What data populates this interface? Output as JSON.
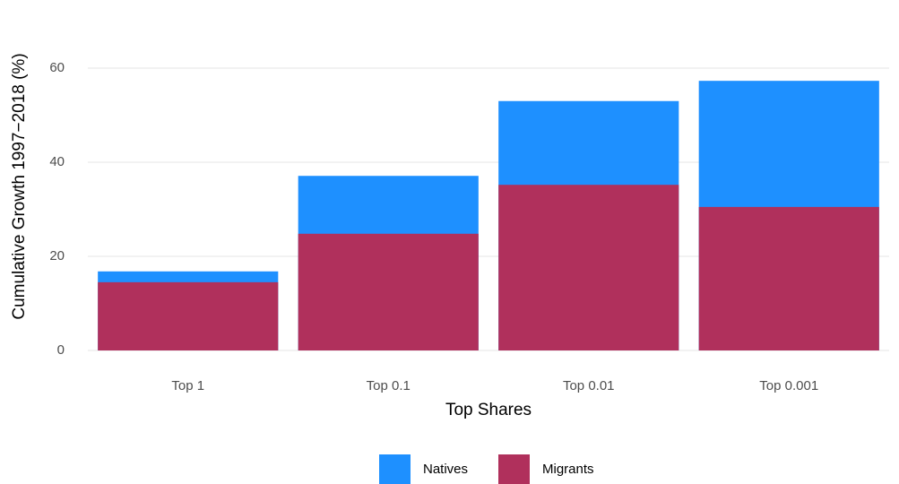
{
  "chart_data": {
    "type": "bar",
    "position": "identity",
    "x_label": "Top Shares",
    "y_label": "Cumulative Growth 1997−2018 (%)",
    "categories": [
      "Top 1",
      "Top 0.1",
      "Top 0.01",
      "Top 0.001"
    ],
    "series": [
      {
        "name": "Natives",
        "color": "#1e90ff",
        "values": [
          16.8,
          37.1,
          53.0,
          57.3
        ]
      },
      {
        "name": "Migrants",
        "color": "#b0305c",
        "values": [
          14.5,
          24.8,
          35.2,
          30.5
        ]
      }
    ],
    "ylim": [
      0,
      60
    ],
    "yticks": [
      0,
      20,
      40,
      60
    ],
    "grid": true,
    "legend": "bottom"
  }
}
